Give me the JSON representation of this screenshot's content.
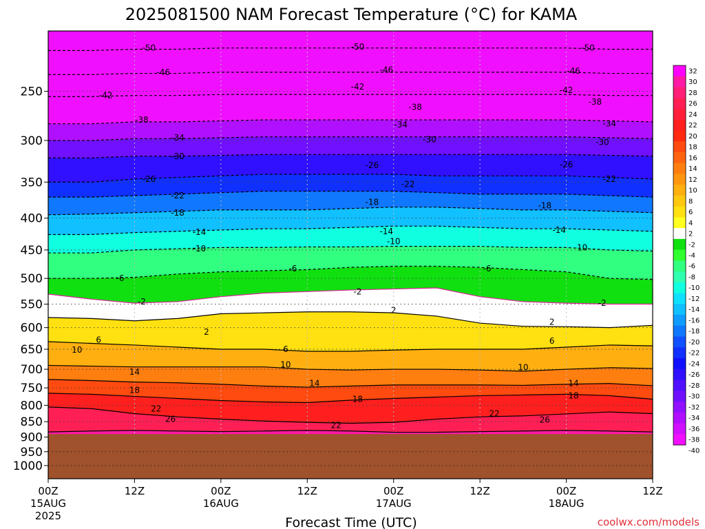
{
  "title": "2025081500 NAM Forecast Temperature (°C) for KAMA",
  "credit": "coolwx.com/models",
  "chart_data": {
    "type": "heatmap",
    "title": "2025081500 NAM Forecast Temperature (°C) for KAMA",
    "xlabel": "Forecast Time (UTC)",
    "ylabel": "",
    "x_range_hours": [
      0,
      84
    ],
    "y_axis": {
      "units": "hPa",
      "inverted": true,
      "log_scale": true,
      "range": [
        1050,
        200
      ],
      "ticks": [
        250,
        300,
        350,
        400,
        450,
        500,
        550,
        600,
        650,
        700,
        750,
        800,
        850,
        900,
        950,
        1000
      ]
    },
    "x_ticks": [
      {
        "hour": 0,
        "label": "00Z",
        "sub1": "15AUG",
        "sub2": "2025"
      },
      {
        "hour": 12,
        "label": "12Z",
        "sub1": "",
        "sub2": ""
      },
      {
        "hour": 24,
        "label": "00Z",
        "sub1": "16AUG",
        "sub2": ""
      },
      {
        "hour": 36,
        "label": "12Z",
        "sub1": "",
        "sub2": ""
      },
      {
        "hour": 48,
        "label": "00Z",
        "sub1": "17AUG",
        "sub2": ""
      },
      {
        "hour": 60,
        "label": "12Z",
        "sub1": "",
        "sub2": ""
      },
      {
        "hour": 72,
        "label": "00Z",
        "sub1": "18AUG",
        "sub2": ""
      },
      {
        "hour": 84,
        "label": "12Z",
        "sub1": "",
        "sub2": ""
      }
    ],
    "grid": true,
    "ground_level_hpa": 890,
    "ground_color": "#a0522d",
    "freezing_line_color": "#e0209a",
    "colorbar": {
      "placement": "right",
      "levels": [
        32,
        30,
        28,
        26,
        24,
        22,
        20,
        18,
        16,
        14,
        12,
        10,
        8,
        6,
        4,
        2,
        -2,
        -4,
        -6,
        -8,
        -10,
        -12,
        -14,
        -16,
        -18,
        -20,
        -22,
        -24,
        -26,
        -28,
        -30,
        -32,
        -34,
        -36,
        -38,
        -40
      ],
      "colors": [
        "#ff00ff",
        "#ff1aa6",
        "#ff1f78",
        "#ff1f55",
        "#ff1f3a",
        "#ff1f1f",
        "#ff2a10",
        "#ff4a10",
        "#ff6410",
        "#ff7e10",
        "#ff9610",
        "#ffb010",
        "#ffc810",
        "#ffe010",
        "#ffff20",
        "#ffffff",
        "#10e010",
        "#30ff30",
        "#30ff80",
        "#30ffb0",
        "#10ffe0",
        "#10e0ff",
        "#10c0ff",
        "#109cff",
        "#1078ff",
        "#1050ff",
        "#1030ff",
        "#1010ff",
        "#3010ff",
        "#5010ff",
        "#7010ff",
        "#9010ff",
        "#b010ff",
        "#d010ff",
        "#f010ff"
      ]
    },
    "isotherms": [
      {
        "value": 26,
        "style": "solid",
        "pressures": [
          883,
          880,
          878,
          880,
          882,
          880,
          878,
          880,
          884,
          884,
          882,
          880,
          878,
          880,
          883
        ]
      },
      {
        "value": 22,
        "style": "solid",
        "pressures": [
          805,
          810,
          825,
          835,
          842,
          848,
          852,
          855,
          852,
          842,
          835,
          832,
          826,
          820,
          825
        ]
      },
      {
        "value": 18,
        "style": "solid",
        "pressures": [
          765,
          768,
          774,
          780,
          786,
          790,
          792,
          785,
          780,
          776,
          772,
          770,
          768,
          772,
          782
        ]
      },
      {
        "value": 14,
        "style": "solid",
        "pressures": [
          727,
          730,
          734,
          736,
          740,
          745,
          748,
          745,
          742,
          742,
          742,
          743,
          740,
          738,
          744
        ]
      },
      {
        "value": 10,
        "style": "solid",
        "pressures": [
          690,
          692,
          694,
          694,
          694,
          694,
          700,
          702,
          700,
          700,
          702,
          705,
          700,
          696,
          698
        ]
      },
      {
        "value": 6,
        "style": "solid",
        "pressures": [
          632,
          636,
          640,
          645,
          650,
          650,
          655,
          655,
          652,
          650,
          650,
          650,
          645,
          640,
          642
        ]
      },
      {
        "value": 2,
        "style": "solid",
        "pressures": [
          578,
          580,
          585,
          580,
          570,
          568,
          566,
          566,
          568,
          575,
          590,
          597,
          598,
          600,
          595
        ]
      },
      {
        "value": -2,
        "style": "dashed",
        "pressures": [
          530,
          540,
          548,
          545,
          535,
          528,
          525,
          522,
          520,
          518,
          535,
          545,
          548,
          550,
          550
        ]
      },
      {
        "value": -6,
        "style": "dashed",
        "pressures": [
          500,
          500,
          498,
          492,
          488,
          486,
          484,
          480,
          478,
          478,
          480,
          484,
          488,
          500,
          502
        ]
      },
      {
        "value": -10,
        "style": "dashed",
        "pressures": [
          455,
          455,
          450,
          448,
          446,
          446,
          445,
          445,
          444,
          444,
          444,
          446,
          446,
          450,
          452
        ]
      },
      {
        "value": -14,
        "style": "dashed",
        "pressures": [
          425,
          425,
          422,
          420,
          418,
          416,
          416,
          414,
          412,
          412,
          414,
          416,
          416,
          418,
          420
        ]
      },
      {
        "value": -18,
        "style": "dashed",
        "pressures": [
          395,
          394,
          392,
          390,
          388,
          388,
          388,
          386,
          384,
          384,
          386,
          388,
          388,
          390,
          392
        ]
      },
      {
        "value": -22,
        "style": "dashed",
        "pressures": [
          370,
          370,
          368,
          366,
          364,
          362,
          362,
          362,
          362,
          364,
          366,
          366,
          366,
          368,
          370
        ]
      },
      {
        "value": -26,
        "style": "dashed",
        "pressures": [
          350,
          350,
          346,
          344,
          342,
          340,
          340,
          340,
          340,
          342,
          342,
          342,
          342,
          344,
          346
        ]
      },
      {
        "value": -30,
        "style": "dashed",
        "pressures": [
          320,
          320,
          318,
          318,
          317,
          316,
          316,
          316,
          316,
          316,
          316,
          316,
          316,
          317,
          318
        ]
      },
      {
        "value": -34,
        "style": "dashed",
        "pressures": [
          300,
          300,
          298,
          298,
          297,
          296,
          296,
          296,
          296,
          296,
          296,
          296,
          296,
          297,
          298
        ]
      },
      {
        "value": -38,
        "style": "dashed",
        "pressures": [
          282,
          282,
          280,
          280,
          279,
          278,
          278,
          278,
          278,
          278,
          278,
          278,
          278,
          279,
          280
        ]
      },
      {
        "value": -42,
        "style": "dashed",
        "pressures": [
          255,
          255,
          254,
          254,
          253,
          253,
          253,
          253,
          253,
          253,
          253,
          253,
          253,
          254,
          254
        ]
      },
      {
        "value": -46,
        "style": "dashed",
        "pressures": [
          235,
          235,
          234,
          234,
          233,
          233,
          233,
          233,
          233,
          233,
          233,
          233,
          233,
          234,
          234
        ]
      },
      {
        "value": -50,
        "style": "dashed",
        "pressures": [
          215,
          215,
          214,
          214,
          213,
          213,
          213,
          213,
          213,
          213,
          213,
          213,
          213,
          214,
          214
        ]
      }
    ],
    "isotherm_x_hours": [
      0,
      6,
      12,
      18,
      24,
      30,
      36,
      42,
      48,
      54,
      60,
      66,
      72,
      78,
      84
    ],
    "contour_labels": [
      {
        "text": "-50",
        "hour": 14,
        "pressure": 213
      },
      {
        "text": "-50",
        "hour": 43,
        "pressure": 212
      },
      {
        "text": "-50",
        "hour": 75,
        "pressure": 213
      },
      {
        "text": "-46",
        "hour": 16,
        "pressure": 233
      },
      {
        "text": "-46",
        "hour": 47,
        "pressure": 231
      },
      {
        "text": "-46",
        "hour": 73,
        "pressure": 232
      },
      {
        "text": "-42",
        "hour": 8,
        "pressure": 254
      },
      {
        "text": "-42",
        "hour": 43,
        "pressure": 246
      },
      {
        "text": "-42",
        "hour": 72,
        "pressure": 249
      },
      {
        "text": "-38",
        "hour": 13,
        "pressure": 278
      },
      {
        "text": "-38",
        "hour": 51,
        "pressure": 265
      },
      {
        "text": "-38",
        "hour": 76,
        "pressure": 260
      },
      {
        "text": "-34",
        "hour": 18,
        "pressure": 297
      },
      {
        "text": "-34",
        "hour": 49,
        "pressure": 283
      },
      {
        "text": "-34",
        "hour": 78,
        "pressure": 282
      },
      {
        "text": "-30",
        "hour": 18,
        "pressure": 318
      },
      {
        "text": "-30",
        "hour": 53,
        "pressure": 299
      },
      {
        "text": "-30",
        "hour": 77,
        "pressure": 302
      },
      {
        "text": "-26",
        "hour": 14,
        "pressure": 346
      },
      {
        "text": "-26",
        "hour": 45,
        "pressure": 329
      },
      {
        "text": "-26",
        "hour": 72,
        "pressure": 328
      },
      {
        "text": "-22",
        "hour": 18,
        "pressure": 368
      },
      {
        "text": "-22",
        "hour": 50,
        "pressure": 353
      },
      {
        "text": "-22",
        "hour": 78,
        "pressure": 346
      },
      {
        "text": "-18",
        "hour": 18,
        "pressure": 392
      },
      {
        "text": "-18",
        "hour": 45,
        "pressure": 377
      },
      {
        "text": "-18",
        "hour": 69,
        "pressure": 382
      },
      {
        "text": "-14",
        "hour": 21,
        "pressure": 421
      },
      {
        "text": "-14",
        "hour": 47,
        "pressure": 420
      },
      {
        "text": "-14",
        "hour": 71,
        "pressure": 418
      },
      {
        "text": "-10",
        "hour": 21,
        "pressure": 448
      },
      {
        "text": "-10",
        "hour": 48,
        "pressure": 436
      },
      {
        "text": "-10",
        "hour": 74,
        "pressure": 446
      },
      {
        "text": "-6",
        "hour": 10,
        "pressure": 500
      },
      {
        "text": "-6",
        "hour": 34,
        "pressure": 482
      },
      {
        "text": "-6",
        "hour": 61,
        "pressure": 482
      },
      {
        "text": "-2",
        "hour": 13,
        "pressure": 545
      },
      {
        "text": "-2",
        "hour": 43,
        "pressure": 525
      },
      {
        "text": "-2",
        "hour": 77,
        "pressure": 548
      },
      {
        "text": "2",
        "hour": 22,
        "pressure": 610
      },
      {
        "text": "2",
        "hour": 48,
        "pressure": 563
      },
      {
        "text": "2",
        "hour": 70,
        "pressure": 588
      },
      {
        "text": "6",
        "hour": 7,
        "pressure": 628
      },
      {
        "text": "6",
        "hour": 33,
        "pressure": 650
      },
      {
        "text": "6",
        "hour": 70,
        "pressure": 630
      },
      {
        "text": "10",
        "hour": 4,
        "pressure": 652
      },
      {
        "text": "10",
        "hour": 33,
        "pressure": 688
      },
      {
        "text": "10",
        "hour": 66,
        "pressure": 695
      },
      {
        "text": "14",
        "hour": 12,
        "pressure": 707
      },
      {
        "text": "14",
        "hour": 37,
        "pressure": 737
      },
      {
        "text": "14",
        "hour": 73,
        "pressure": 737
      },
      {
        "text": "18",
        "hour": 12,
        "pressure": 757
      },
      {
        "text": "18",
        "hour": 43,
        "pressure": 782
      },
      {
        "text": "18",
        "hour": 73,
        "pressure": 772
      },
      {
        "text": "22",
        "hour": 15,
        "pressure": 810
      },
      {
        "text": "22",
        "hour": 40,
        "pressure": 862
      },
      {
        "text": "22",
        "hour": 62,
        "pressure": 825
      },
      {
        "text": "26",
        "hour": 17,
        "pressure": 842
      },
      {
        "text": "26",
        "hour": 69,
        "pressure": 844
      }
    ]
  }
}
